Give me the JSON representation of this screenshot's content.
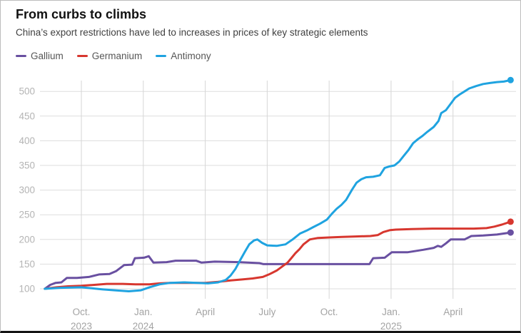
{
  "header": {
    "title": "From curbs to climbs",
    "subtitle": "China’s export restrictions have led to increases in prices of key strategic elements"
  },
  "chart_data": {
    "type": "line",
    "title": "From curbs to climbs",
    "subtitle": "China’s export restrictions have led to increases in prices of key strategic elements",
    "legend_position": "top",
    "grid": true,
    "y_axis": {
      "ticks": [
        100,
        150,
        200,
        250,
        300,
        350,
        400,
        450,
        500
      ],
      "range": [
        93,
        530
      ]
    },
    "x_axis": {
      "range": [
        "2023-08-08",
        "2025-06-25"
      ],
      "ticks": [
        {
          "label": "Oct.",
          "year": "2023",
          "date": "2023-10-01"
        },
        {
          "label": "Jan.",
          "year": "2024",
          "date": "2024-01-01"
        },
        {
          "label": "April",
          "year": "",
          "date": "2024-04-01"
        },
        {
          "label": "July",
          "year": "",
          "date": "2024-07-01"
        },
        {
          "label": "Oct.",
          "year": "",
          "date": "2024-10-01"
        },
        {
          "label": "Jan.",
          "year": "2025",
          "date": "2025-01-01"
        },
        {
          "label": "April",
          "year": "",
          "date": "2025-04-01"
        }
      ]
    },
    "series": [
      {
        "name": "Gallium",
        "color": "#6950a1",
        "points": [
          [
            "2023-08-08",
            100
          ],
          [
            "2023-08-16",
            108
          ],
          [
            "2023-08-24",
            112
          ],
          [
            "2023-09-02",
            113
          ],
          [
            "2023-09-10",
            122
          ],
          [
            "2023-09-25",
            122
          ],
          [
            "2023-10-12",
            124
          ],
          [
            "2023-10-27",
            129
          ],
          [
            "2023-11-12",
            130
          ],
          [
            "2023-11-22",
            136
          ],
          [
            "2023-12-03",
            148
          ],
          [
            "2023-12-15",
            149
          ],
          [
            "2023-12-19",
            162
          ],
          [
            "2024-01-02",
            163
          ],
          [
            "2024-01-09",
            166
          ],
          [
            "2024-01-16",
            153
          ],
          [
            "2024-02-05",
            154
          ],
          [
            "2024-02-18",
            157
          ],
          [
            "2024-03-18",
            157
          ],
          [
            "2024-03-26",
            153
          ],
          [
            "2024-04-15",
            155
          ],
          [
            "2024-05-20",
            154
          ],
          [
            "2024-06-20",
            152
          ],
          [
            "2024-06-26",
            150
          ],
          [
            "2024-08-01",
            150
          ],
          [
            "2024-10-01",
            150
          ],
          [
            "2024-11-30",
            150
          ],
          [
            "2024-12-05",
            162
          ],
          [
            "2024-12-22",
            163
          ],
          [
            "2025-01-02",
            174
          ],
          [
            "2025-01-25",
            174
          ],
          [
            "2025-02-18",
            179
          ],
          [
            "2025-03-03",
            183
          ],
          [
            "2025-03-09",
            187
          ],
          [
            "2025-03-14",
            185
          ],
          [
            "2025-03-21",
            192
          ],
          [
            "2025-03-28",
            200
          ],
          [
            "2025-04-18",
            200
          ],
          [
            "2025-04-28",
            207
          ],
          [
            "2025-05-15",
            208
          ],
          [
            "2025-06-05",
            210
          ],
          [
            "2025-06-25",
            214
          ]
        ]
      },
      {
        "name": "Germanium",
        "color": "#d7372f",
        "points": [
          [
            "2023-08-08",
            100
          ],
          [
            "2023-08-25",
            103
          ],
          [
            "2023-09-12",
            105
          ],
          [
            "2023-10-01",
            106
          ],
          [
            "2023-10-20",
            108
          ],
          [
            "2023-11-08",
            110
          ],
          [
            "2023-12-01",
            110
          ],
          [
            "2023-12-20",
            109
          ],
          [
            "2024-01-10",
            109
          ],
          [
            "2024-01-25",
            111
          ],
          [
            "2024-02-10",
            112
          ],
          [
            "2024-03-05",
            112
          ],
          [
            "2024-04-01",
            112
          ],
          [
            "2024-04-20",
            114
          ],
          [
            "2024-05-08",
            117
          ],
          [
            "2024-05-25",
            119
          ],
          [
            "2024-06-10",
            121
          ],
          [
            "2024-06-25",
            124
          ],
          [
            "2024-07-05",
            130
          ],
          [
            "2024-07-15",
            137
          ],
          [
            "2024-07-24",
            146
          ],
          [
            "2024-07-31",
            153
          ],
          [
            "2024-08-06",
            162
          ],
          [
            "2024-08-12",
            172
          ],
          [
            "2024-08-18",
            180
          ],
          [
            "2024-08-24",
            190
          ],
          [
            "2024-09-03",
            200
          ],
          [
            "2024-09-15",
            203
          ],
          [
            "2024-10-01",
            204
          ],
          [
            "2024-10-20",
            205
          ],
          [
            "2024-11-10",
            206
          ],
          [
            "2024-12-01",
            207
          ],
          [
            "2024-12-12",
            209
          ],
          [
            "2024-12-20",
            215
          ],
          [
            "2024-12-30",
            219
          ],
          [
            "2025-01-08",
            220
          ],
          [
            "2025-02-01",
            221
          ],
          [
            "2025-03-01",
            222
          ],
          [
            "2025-04-01",
            222
          ],
          [
            "2025-05-01",
            222
          ],
          [
            "2025-05-20",
            223
          ],
          [
            "2025-06-01",
            226
          ],
          [
            "2025-06-12",
            230
          ],
          [
            "2025-06-25",
            236
          ]
        ]
      },
      {
        "name": "Antimony",
        "color": "#1fa3e0",
        "points": [
          [
            "2023-08-08",
            100
          ],
          [
            "2023-09-01",
            102
          ],
          [
            "2023-10-01",
            103
          ],
          [
            "2023-11-01",
            99
          ],
          [
            "2023-11-20",
            97
          ],
          [
            "2023-12-10",
            95
          ],
          [
            "2023-12-28",
            97
          ],
          [
            "2024-01-10",
            103
          ],
          [
            "2024-01-25",
            109
          ],
          [
            "2024-02-10",
            112
          ],
          [
            "2024-03-01",
            113
          ],
          [
            "2024-03-20",
            112
          ],
          [
            "2024-04-05",
            111
          ],
          [
            "2024-04-20",
            113
          ],
          [
            "2024-05-01",
            118
          ],
          [
            "2024-05-08",
            127
          ],
          [
            "2024-05-15",
            140
          ],
          [
            "2024-05-22",
            158
          ],
          [
            "2024-05-29",
            175
          ],
          [
            "2024-06-05",
            190
          ],
          [
            "2024-06-12",
            198
          ],
          [
            "2024-06-17",
            200
          ],
          [
            "2024-06-24",
            193
          ],
          [
            "2024-07-01",
            188
          ],
          [
            "2024-07-15",
            187
          ],
          [
            "2024-07-28",
            190
          ],
          [
            "2024-08-08",
            200
          ],
          [
            "2024-08-19",
            212
          ],
          [
            "2024-08-29",
            218
          ],
          [
            "2024-09-08",
            225
          ],
          [
            "2024-09-18",
            232
          ],
          [
            "2024-09-28",
            240
          ],
          [
            "2024-10-05",
            252
          ],
          [
            "2024-10-12",
            262
          ],
          [
            "2024-10-19",
            270
          ],
          [
            "2024-10-26",
            280
          ],
          [
            "2024-11-04",
            300
          ],
          [
            "2024-11-11",
            315
          ],
          [
            "2024-11-18",
            322
          ],
          [
            "2024-11-25",
            326
          ],
          [
            "2024-12-05",
            327
          ],
          [
            "2024-12-15",
            330
          ],
          [
            "2024-12-22",
            345
          ],
          [
            "2024-12-29",
            348
          ],
          [
            "2025-01-06",
            350
          ],
          [
            "2025-01-13",
            358
          ],
          [
            "2025-01-20",
            370
          ],
          [
            "2025-01-27",
            382
          ],
          [
            "2025-02-03",
            395
          ],
          [
            "2025-02-10",
            403
          ],
          [
            "2025-02-17",
            410
          ],
          [
            "2025-02-24",
            418
          ],
          [
            "2025-03-03",
            428
          ],
          [
            "2025-03-10",
            440
          ],
          [
            "2025-03-14",
            456
          ],
          [
            "2025-03-21",
            462
          ],
          [
            "2025-03-28",
            475
          ],
          [
            "2025-04-04",
            487
          ],
          [
            "2025-04-11",
            494
          ],
          [
            "2025-04-18",
            500
          ],
          [
            "2025-04-25",
            506
          ],
          [
            "2025-05-05",
            511
          ],
          [
            "2025-05-15",
            515
          ],
          [
            "2025-05-25",
            517
          ],
          [
            "2025-06-05",
            519
          ],
          [
            "2025-06-15",
            520
          ],
          [
            "2025-06-25",
            523
          ]
        ]
      }
    ]
  }
}
